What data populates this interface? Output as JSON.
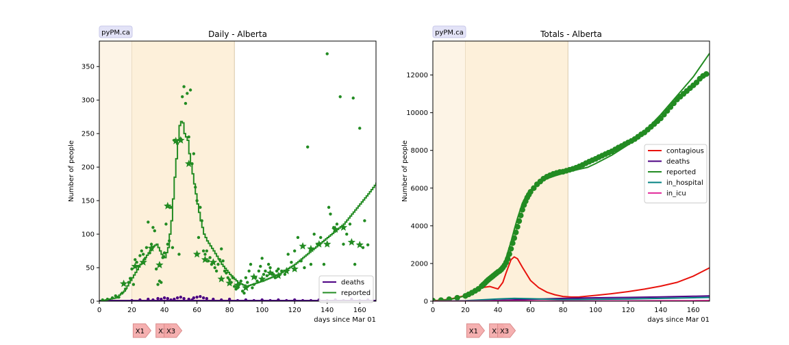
{
  "chart_data": [
    {
      "type": "line",
      "title": "Daily - Alberta",
      "badge": "pyPM.ca",
      "xlabel": "days since Mar 01",
      "ylabel": "Number of people",
      "xlim": [
        0,
        170
      ],
      "ylim": [
        0,
        388
      ],
      "xticks": [
        0,
        20,
        40,
        60,
        80,
        100,
        120,
        140,
        160
      ],
      "yticks": [
        0,
        50,
        100,
        150,
        200,
        250,
        300,
        350
      ],
      "grid": false,
      "legend": "lower-right",
      "shaded_regions": [
        {
          "from": 0,
          "to": 20,
          "color": "#fdf4e6"
        },
        {
          "from": 20,
          "to": 83,
          "color": "#fdf0da"
        }
      ],
      "markers": [
        {
          "label": "X1",
          "x": 25
        },
        {
          "label": "X2",
          "x": 39
        },
        {
          "label": "X3",
          "x": 44
        }
      ],
      "series": [
        {
          "name": "deaths",
          "color": "#4b0082",
          "style": "step",
          "x": [
            0,
            170
          ],
          "y": [
            1,
            1
          ],
          "points_x": [
            20,
            25,
            30,
            33,
            36,
            38,
            40,
            42,
            44,
            46,
            48,
            50,
            52,
            55,
            57,
            58,
            60,
            62,
            64,
            66,
            70,
            75,
            80,
            85,
            90,
            95,
            100,
            105,
            110,
            115,
            120,
            125,
            130,
            135,
            140,
            145,
            150,
            155,
            160,
            165
          ],
          "points_y": [
            1,
            2,
            3,
            2,
            4,
            3,
            5,
            4,
            2,
            3,
            5,
            6,
            4,
            3,
            2,
            5,
            6,
            7,
            5,
            4,
            3,
            2,
            3,
            1,
            2,
            1,
            2,
            1,
            2,
            1,
            2,
            1,
            1,
            2,
            1,
            2,
            1,
            3,
            1,
            2
          ]
        },
        {
          "name": "reported",
          "color": "#228b22",
          "style": "step",
          "x": [
            0,
            10,
            15,
            20,
            25,
            30,
            33,
            35,
            38,
            40,
            42,
            44,
            46,
            48,
            49,
            50,
            51,
            52,
            54,
            55,
            56,
            58,
            60,
            62,
            64,
            66,
            70,
            75,
            80,
            85,
            90,
            100,
            110,
            120,
            130,
            140,
            150,
            160,
            165,
            170
          ],
          "y": [
            0,
            5,
            15,
            35,
            55,
            72,
            82,
            85,
            70,
            65,
            80,
            120,
            185,
            240,
            262,
            268,
            266,
            250,
            240,
            220,
            205,
            175,
            145,
            120,
            100,
            90,
            75,
            55,
            40,
            28,
            22,
            30,
            40,
            55,
            75,
            95,
            115,
            145,
            160,
            176
          ],
          "points_x": [
            2,
            5,
            8,
            10,
            12,
            14,
            16,
            18,
            19,
            20,
            21,
            22,
            23,
            24,
            25,
            26,
            27,
            28,
            29,
            30,
            31,
            32,
            33,
            34,
            35,
            36,
            37,
            38,
            39,
            40,
            41,
            42,
            43,
            44,
            45,
            46,
            47,
            48,
            49,
            50,
            51,
            52,
            53,
            54,
            55,
            56,
            57,
            58,
            59,
            60,
            61,
            62,
            63,
            64,
            65,
            66,
            67,
            68,
            69,
            70,
            71,
            72,
            73,
            74,
            75,
            76,
            77,
            78,
            79,
            80,
            81,
            82,
            83,
            84,
            85,
            86,
            87,
            88,
            89,
            90,
            91,
            92,
            93,
            94,
            95,
            96,
            97,
            98,
            99,
            100,
            101,
            102,
            103,
            104,
            105,
            106,
            107,
            108,
            109,
            110,
            112,
            114,
            116,
            118,
            120,
            122,
            124,
            126,
            128,
            130,
            132,
            134,
            136,
            138,
            140,
            141,
            142,
            144,
            146,
            148,
            150,
            152,
            154,
            156,
            157,
            160,
            162,
            163,
            165
          ],
          "points_y": [
            2,
            3,
            5,
            8,
            6,
            12,
            18,
            28,
            34,
            48,
            25,
            62,
            58,
            52,
            68,
            75,
            70,
            63,
            80,
            118,
            72,
            85,
            110,
            105,
            48,
            25,
            30,
            28,
            65,
            72,
            115,
            85,
            90,
            140,
            80,
            240,
            238,
            235,
            70,
            242,
            305,
            320,
            295,
            310,
            245,
            315,
            205,
            220,
            170,
            150,
            95,
            140,
            120,
            75,
            70,
            75,
            60,
            65,
            55,
            58,
            50,
            45,
            55,
            62,
            78,
            60,
            45,
            42,
            35,
            32,
            28,
            35,
            22,
            18,
            20,
            25,
            30,
            15,
            12,
            35,
            28,
            45,
            55,
            20,
            25,
            35,
            30,
            45,
            52,
            64,
            40,
            45,
            38,
            55,
            50,
            42,
            40,
            35,
            45,
            48,
            45,
            40,
            70,
            58,
            75,
            95,
            60,
            50,
            230,
            55,
            100,
            85,
            95,
            55,
            369,
            140,
            130,
            110,
            115,
            305,
            85,
            100,
            115,
            303,
            55,
            258,
            80,
            120,
            84
          ],
          "star_x": [
            15,
            22,
            27,
            32,
            37,
            42,
            47,
            50,
            55,
            60,
            65,
            70,
            75,
            80,
            85,
            90,
            95,
            100,
            105,
            110,
            115,
            120,
            125,
            130,
            135,
            140,
            145,
            150,
            155,
            160
          ],
          "star_y": [
            26,
            52,
            58,
            79,
            54,
            142,
            239,
            240,
            205,
            70,
            62,
            58,
            33,
            27,
            24,
            20,
            36,
            33,
            42,
            38,
            45,
            48,
            82,
            78,
            85,
            85,
            107,
            110,
            88,
            84
          ]
        }
      ]
    },
    {
      "type": "line",
      "title": "Totals - Alberta",
      "badge": "pyPM.ca",
      "xlabel": "days since Mar 01",
      "ylabel": "Number of people",
      "xlim": [
        0,
        170
      ],
      "ylim": [
        0,
        13800
      ],
      "xticks": [
        0,
        20,
        40,
        60,
        80,
        100,
        120,
        140,
        160
      ],
      "yticks": [
        0,
        2000,
        4000,
        6000,
        8000,
        10000,
        12000
      ],
      "grid": false,
      "legend": "center-right",
      "shaded_regions": [
        {
          "from": 0,
          "to": 20,
          "color": "#fdf4e6"
        },
        {
          "from": 20,
          "to": 83,
          "color": "#fdf0da"
        }
      ],
      "markers": [
        {
          "label": "X1",
          "x": 25
        },
        {
          "label": "X2",
          "x": 39
        },
        {
          "label": "X3",
          "x": 44
        }
      ],
      "series": [
        {
          "name": "contagious",
          "color": "#e8120c",
          "x": [
            0,
            10,
            20,
            25,
            30,
            35,
            38,
            40,
            43,
            45,
            48,
            50,
            52,
            55,
            60,
            65,
            70,
            75,
            80,
            85,
            90,
            100,
            110,
            120,
            130,
            140,
            150,
            160,
            170
          ],
          "y": [
            20,
            100,
            300,
            550,
            720,
            780,
            700,
            650,
            1000,
            1500,
            2200,
            2350,
            2250,
            1800,
            1100,
            720,
            480,
            340,
            250,
            220,
            230,
            310,
            400,
            510,
            640,
            800,
            1000,
            1330,
            1770
          ]
        },
        {
          "name": "deaths",
          "color": "#4b0082",
          "x": [
            0,
            20,
            40,
            60,
            80,
            100,
            120,
            140,
            160,
            170
          ],
          "y": [
            0,
            5,
            40,
            100,
            150,
            180,
            200,
            230,
            260,
            280
          ]
        },
        {
          "name": "reported",
          "color": "#228b22",
          "x": [
            0,
            10,
            20,
            25,
            30,
            35,
            38,
            40,
            42,
            45,
            48,
            50,
            52,
            55,
            58,
            60,
            65,
            70,
            75,
            80,
            85,
            90,
            95,
            100,
            110,
            120,
            130,
            140,
            150,
            160,
            170
          ],
          "y": [
            10,
            80,
            280,
            480,
            800,
            1150,
            1300,
            1450,
            1700,
            2300,
            3150,
            3800,
            4400,
            5200,
            5700,
            5900,
            6250,
            6500,
            6650,
            6780,
            6900,
            7000,
            7100,
            7300,
            7750,
            8300,
            9000,
            9900,
            10900,
            11900,
            13150
          ],
          "points_x": [
            0,
            5,
            10,
            15,
            20,
            22,
            24,
            26,
            28,
            30,
            31,
            32,
            33,
            34,
            35,
            36,
            37,
            38,
            39,
            40,
            41,
            42,
            43,
            44,
            45,
            46,
            47,
            48,
            49,
            50,
            51,
            52,
            53,
            54,
            55,
            56,
            57,
            58,
            59,
            60,
            62,
            64,
            66,
            68,
            70,
            72,
            74,
            76,
            78,
            80,
            82,
            84,
            86,
            88,
            90,
            92,
            94,
            96,
            98,
            100,
            102,
            104,
            106,
            108,
            110,
            112,
            114,
            116,
            118,
            120,
            122,
            124,
            126,
            128,
            130,
            132,
            134,
            136,
            138,
            140,
            142,
            144,
            146,
            148,
            150,
            152,
            154,
            156,
            158,
            160,
            162,
            164,
            166,
            168
          ],
          "points_y": [
            30,
            50,
            100,
            180,
            280,
            360,
            450,
            550,
            650,
            800,
            880,
            960,
            1050,
            1130,
            1200,
            1270,
            1340,
            1410,
            1480,
            1550,
            1600,
            1680,
            1780,
            1900,
            2050,
            2250,
            2500,
            2780,
            3080,
            3350,
            3650,
            3950,
            4250,
            4550,
            4850,
            5100,
            5300,
            5500,
            5650,
            5800,
            6000,
            6200,
            6350,
            6500,
            6600,
            6680,
            6750,
            6800,
            6850,
            6870,
            6920,
            6970,
            7020,
            7080,
            7150,
            7230,
            7320,
            7400,
            7480,
            7550,
            7640,
            7720,
            7800,
            7880,
            7950,
            8050,
            8150,
            8230,
            8330,
            8420,
            8500,
            8600,
            8720,
            8850,
            8950,
            9100,
            9250,
            9400,
            9550,
            9700,
            9900,
            10100,
            10300,
            10500,
            10700,
            10850,
            11000,
            11150,
            11300,
            11450,
            11600,
            11800,
            11950,
            12050
          ]
        },
        {
          "name": "in_hospital",
          "color": "#008080",
          "x": [
            0,
            20,
            40,
            50,
            60,
            80,
            100,
            120,
            140,
            160,
            170
          ],
          "y": [
            0,
            30,
            120,
            150,
            130,
            80,
            100,
            120,
            150,
            180,
            200
          ]
        },
        {
          "name": "in_icu",
          "color": "#e32e9c",
          "x": [
            0,
            20,
            40,
            60,
            80,
            100,
            120,
            140,
            160,
            170
          ],
          "y": [
            0,
            5,
            15,
            20,
            12,
            15,
            18,
            25,
            30,
            35
          ]
        }
      ]
    }
  ]
}
